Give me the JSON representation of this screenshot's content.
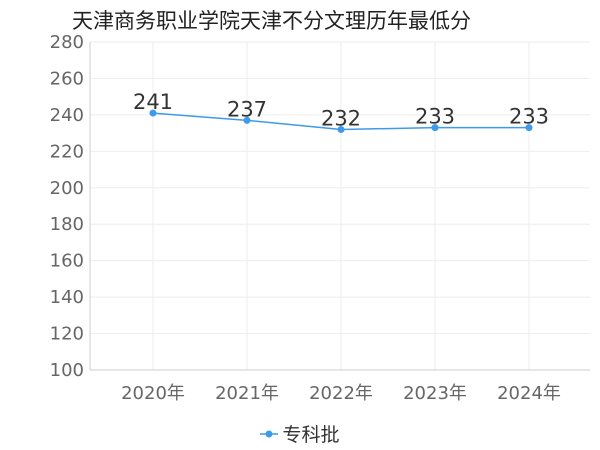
{
  "chart_data": {
    "type": "line",
    "title": "天津商务职业学院天津不分文理历年最低分",
    "categories": [
      "2020年",
      "2021年",
      "2022年",
      "2023年",
      "2024年"
    ],
    "series": [
      {
        "name": "专科批",
        "values": [
          241,
          237,
          232,
          233,
          233
        ]
      }
    ],
    "ylim": [
      100,
      280
    ],
    "yticks": [
      100,
      120,
      140,
      160,
      180,
      200,
      220,
      240,
      260,
      280
    ],
    "grid": true,
    "legend": "bottom-center",
    "colors": {
      "series": "#3d9be9",
      "grid": "#eeeeee",
      "axis": "#cccccc"
    }
  }
}
